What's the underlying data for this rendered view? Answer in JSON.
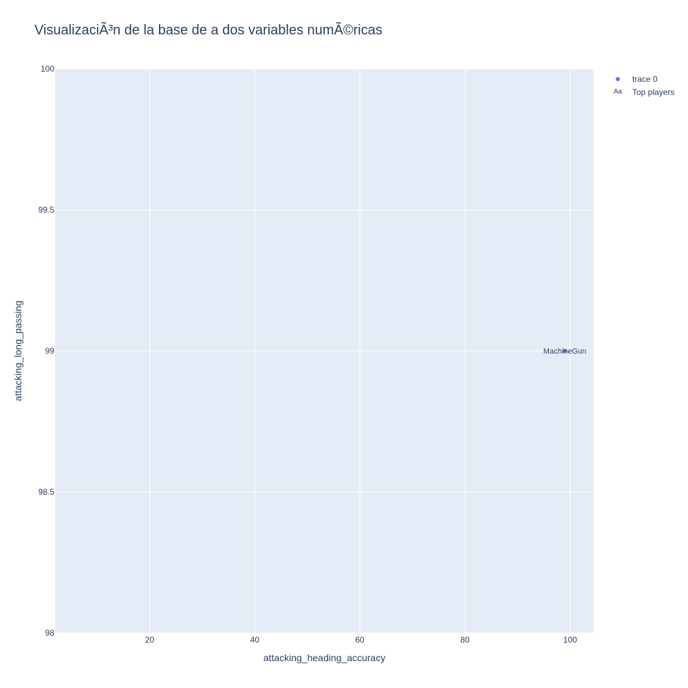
{
  "chart_data": {
    "type": "scatter",
    "title": "VisualizaciÃ³n de la base de a dos variables numÃ©ricas",
    "xlabel": "attacking_heading_accuracy",
    "ylabel": "attacking_long_passing",
    "xlim": [
      2,
      104.5
    ],
    "ylim": [
      98,
      100
    ],
    "x_ticks": [
      20,
      40,
      60,
      80,
      100
    ],
    "y_ticks": [
      98,
      98.5,
      99,
      99.5,
      100
    ],
    "y_tick_labels": [
      "98",
      "98.5",
      "99",
      "99.5",
      "100"
    ],
    "grid": true,
    "legend_position": "top-right",
    "series": [
      {
        "name": "trace 0",
        "mode": "markers",
        "color": "#636efa",
        "points": [
          {
            "x": 99,
            "y": 99
          }
        ]
      },
      {
        "name": "Top players",
        "mode": "text",
        "color": "#2a3f5f",
        "points": [
          {
            "x": 99,
            "y": 99,
            "text": "MachineGun"
          }
        ]
      }
    ],
    "legend_text_symbol": "Aa",
    "colors": {
      "plot_bg": "#e5ecf6",
      "grid": "#ffffff",
      "text": "#2a3f5f",
      "marker": "#636efa"
    }
  }
}
